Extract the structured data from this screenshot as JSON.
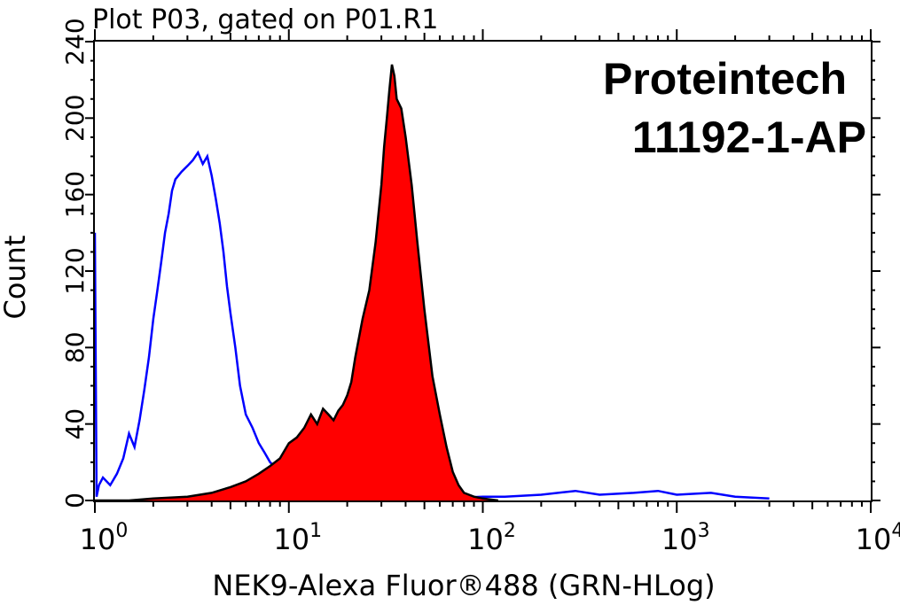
{
  "chart_data": {
    "type": "area",
    "title": "Plot P03, gated on P01.R1",
    "xlabel": "NEK9-Alexa Fluor®488 (GRN-HLog)",
    "ylabel": "Count",
    "xscale": "log",
    "xlim": [
      1,
      10000
    ],
    "ylim": [
      0,
      240
    ],
    "x_ticks": [
      {
        "base": "10",
        "exp": "0",
        "value": 1
      },
      {
        "base": "10",
        "exp": "1",
        "value": 10
      },
      {
        "base": "10",
        "exp": "2",
        "value": 100
      },
      {
        "base": "10",
        "exp": "3",
        "value": 1000
      },
      {
        "base": "10",
        "exp": "4",
        "value": 10000
      }
    ],
    "y_ticks": [
      "0",
      "40",
      "80",
      "120",
      "160",
      "200",
      "240"
    ],
    "annotations": [
      "Proteintech",
      "11192-1-AP"
    ],
    "series": [
      {
        "kind": "outline",
        "color": "#0000ff",
        "points": [
          [
            1.0,
            140
          ],
          [
            1.02,
            2
          ],
          [
            1.05,
            8
          ],
          [
            1.1,
            12
          ],
          [
            1.2,
            8
          ],
          [
            1.3,
            14
          ],
          [
            1.4,
            22
          ],
          [
            1.5,
            35
          ],
          [
            1.6,
            28
          ],
          [
            1.7,
            42
          ],
          [
            1.8,
            58
          ],
          [
            1.9,
            75
          ],
          [
            2.0,
            95
          ],
          [
            2.1,
            110
          ],
          [
            2.2,
            125
          ],
          [
            2.3,
            140
          ],
          [
            2.4,
            150
          ],
          [
            2.5,
            162
          ],
          [
            2.6,
            168
          ],
          [
            2.8,
            172
          ],
          [
            3.0,
            175
          ],
          [
            3.2,
            178
          ],
          [
            3.4,
            182
          ],
          [
            3.6,
            176
          ],
          [
            3.8,
            180
          ],
          [
            4.0,
            170
          ],
          [
            4.2,
            158
          ],
          [
            4.4,
            145
          ],
          [
            4.6,
            130
          ],
          [
            4.8,
            112
          ],
          [
            5.0,
            98
          ],
          [
            5.3,
            80
          ],
          [
            5.6,
            60
          ],
          [
            6.0,
            45
          ],
          [
            6.5,
            38
          ],
          [
            7.0,
            30
          ],
          [
            7.5,
            25
          ],
          [
            8.0,
            20
          ],
          [
            9.0,
            15
          ],
          [
            10.0,
            12
          ],
          [
            11.0,
            8
          ],
          [
            12.0,
            5
          ],
          [
            14.0,
            3
          ],
          [
            17.0,
            2
          ],
          [
            20.0,
            2
          ],
          [
            30.0,
            1
          ],
          [
            60.0,
            1
          ],
          [
            100.0,
            2
          ],
          [
            130.0,
            2
          ],
          [
            200.0,
            3
          ],
          [
            300.0,
            5
          ],
          [
            400.0,
            3
          ],
          [
            600.0,
            4
          ],
          [
            800.0,
            5
          ],
          [
            1000.0,
            3
          ],
          [
            1500.0,
            4
          ],
          [
            2000.0,
            2
          ],
          [
            3000.0,
            1
          ]
        ]
      },
      {
        "kind": "filled",
        "color": "#ff0000",
        "stroke": "#000000",
        "points": [
          [
            1.0,
            0
          ],
          [
            1.5,
            0
          ],
          [
            2.0,
            1
          ],
          [
            3.0,
            2
          ],
          [
            4.0,
            4
          ],
          [
            5.0,
            7
          ],
          [
            6.0,
            10
          ],
          [
            7.0,
            14
          ],
          [
            8.0,
            18
          ],
          [
            9.0,
            22
          ],
          [
            10.0,
            30
          ],
          [
            11.0,
            33
          ],
          [
            12.0,
            38
          ],
          [
            13.0,
            45
          ],
          [
            14.0,
            40
          ],
          [
            15.0,
            48
          ],
          [
            16.0,
            45
          ],
          [
            17.0,
            42
          ],
          [
            18.0,
            47
          ],
          [
            19.0,
            50
          ],
          [
            20.0,
            55
          ],
          [
            21.0,
            62
          ],
          [
            22.0,
            75
          ],
          [
            24.0,
            95
          ],
          [
            26.0,
            110
          ],
          [
            28.0,
            135
          ],
          [
            30.0,
            165
          ],
          [
            31.0,
            185
          ],
          [
            32.0,
            200
          ],
          [
            33.0,
            215
          ],
          [
            34.0,
            228
          ],
          [
            35.0,
            222
          ],
          [
            36.0,
            210
          ],
          [
            38.0,
            205
          ],
          [
            40.0,
            190
          ],
          [
            43.0,
            165
          ],
          [
            46.0,
            135
          ],
          [
            50.0,
            100
          ],
          [
            55.0,
            65
          ],
          [
            60.0,
            45
          ],
          [
            65.0,
            28
          ],
          [
            70.0,
            15
          ],
          [
            75.0,
            8
          ],
          [
            80.0,
            4
          ],
          [
            90.0,
            2
          ],
          [
            100.0,
            1
          ],
          [
            120.0,
            0
          ]
        ]
      }
    ]
  }
}
